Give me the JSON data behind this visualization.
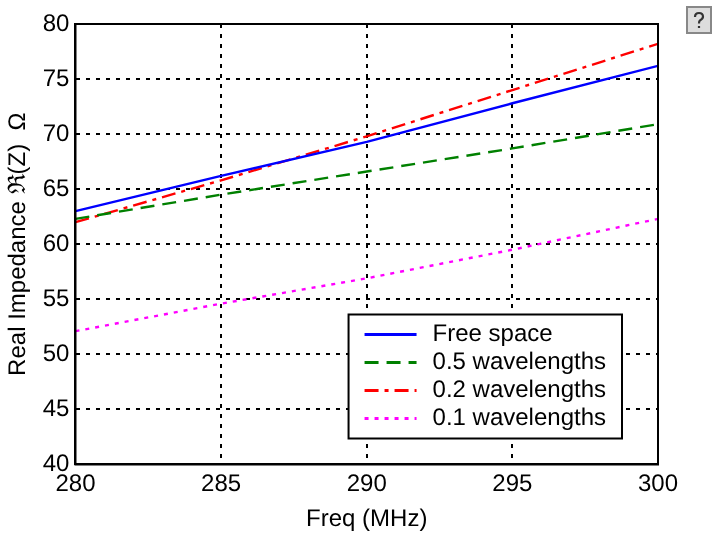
{
  "chart_data": {
    "type": "line",
    "xlabel": "Freq (MHz)",
    "ylabel": "Real Impedance ℜ(Z)  Ω",
    "x": [
      280,
      285,
      290,
      295,
      300
    ],
    "series": [
      {
        "name": "Free space",
        "color": "#0000ff",
        "line_style": "solid",
        "values": [
          63,
          66.2,
          69.3,
          72.8,
          76.2
        ]
      },
      {
        "name": "0.5 wavelengths",
        "color": "#008000",
        "line_style": "dashed",
        "values": [
          62.3,
          64.5,
          66.6,
          68.7,
          70.9
        ]
      },
      {
        "name": "0.2 wavelengths",
        "color": "#ff0000",
        "line_style": "dashdot",
        "values": [
          62.0,
          65.8,
          69.8,
          74.0,
          78.2
        ]
      },
      {
        "name": "0.1 wavelengths",
        "color": "#ff00ff",
        "line_style": "dotted",
        "values": [
          52.1,
          54.6,
          56.9,
          59.5,
          62.3
        ]
      }
    ],
    "xlim": [
      280,
      300
    ],
    "xticks": [
      280,
      285,
      290,
      295,
      300
    ],
    "ylim": [
      40,
      80
    ],
    "yticks": [
      40,
      45,
      50,
      55,
      60,
      65,
      70,
      75,
      80
    ],
    "grid": true,
    "legend": "bottom right",
    "marker": "none"
  }
}
